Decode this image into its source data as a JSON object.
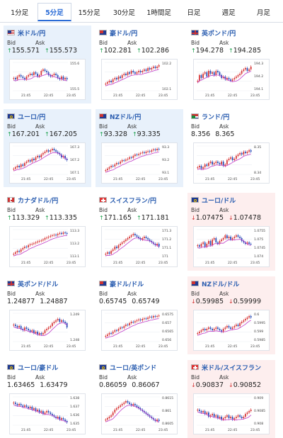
{
  "tabs": [
    {
      "label": "1分足",
      "active": false
    },
    {
      "label": "5分足",
      "active": true
    },
    {
      "label": "15分足",
      "active": false
    },
    {
      "label": "30分足",
      "active": false
    },
    {
      "label": "1時間足",
      "active": false
    },
    {
      "label": "日足",
      "active": false
    },
    {
      "label": "週足",
      "active": false
    },
    {
      "label": "月足",
      "active": false
    }
  ],
  "bid_label": "Bid",
  "ask_label": "Ask",
  "time_labels": [
    "21:45",
    "22:45",
    "23:45"
  ],
  "colors": {
    "up": "#1aa14b",
    "down": "#d23030",
    "link": "#2a5db0",
    "candle_up": "#d83a3a",
    "candle_down": "#2c4fb8",
    "ma": "#c03cc8"
  },
  "cards": [
    {
      "pair": "米ドル/円",
      "flag": "us",
      "bg": "blue",
      "dir": "up",
      "bid": "155.571",
      "ask": "155.573",
      "y_ticks": [
        "155.6",
        "155.5"
      ]
    },
    {
      "pair": "豪ドル/円",
      "flag": "au",
      "bg": "white",
      "dir": "up",
      "bid": "102.281",
      "ask": "102.286",
      "y_ticks": [
        "102.2",
        "102.1"
      ]
    },
    {
      "pair": "英ポンド/円",
      "flag": "gb",
      "bg": "white",
      "dir": "up",
      "bid": "194.278",
      "ask": "194.285",
      "y_ticks": [
        "194.3",
        "194.2",
        "194.1"
      ]
    },
    {
      "pair": "ユーロ/円",
      "flag": "eu",
      "bg": "blue",
      "dir": "up",
      "bid": "167.201",
      "ask": "167.205",
      "y_ticks": [
        "167.3",
        "167.2",
        "167.1"
      ]
    },
    {
      "pair": "NZドル/円",
      "flag": "nz",
      "bg": "blue",
      "dir": "up",
      "bid": "93.328",
      "ask": "93.335",
      "y_ticks": [
        "93.3",
        "93.2",
        "93.1"
      ]
    },
    {
      "pair": "ランド/円",
      "flag": "za",
      "bg": "white",
      "dir": "none",
      "bid": "8.356",
      "ask": "8.365",
      "y_ticks": [
        "8.35",
        "8.34"
      ]
    },
    {
      "pair": "カナダドル/円",
      "flag": "ca",
      "bg": "white",
      "dir": "up",
      "bid": "113.329",
      "ask": "113.335",
      "y_ticks": [
        "113.3",
        "113.2",
        "113.1"
      ]
    },
    {
      "pair": "スイスフラン/円",
      "flag": "ch",
      "bg": "white",
      "dir": "up",
      "bid": "171.165",
      "ask": "171.181",
      "y_ticks": [
        "171.3",
        "171.2",
        "171.1",
        "171"
      ]
    },
    {
      "pair": "ユーロ/ドル",
      "flag": "eu",
      "bg": "pink",
      "dir": "down",
      "bid": "1.07475",
      "ask": "1.07478",
      "y_ticks": [
        "1.0755",
        "1.075",
        "1.0745",
        "1.074"
      ]
    },
    {
      "pair": "英ポンド/ドル",
      "flag": "gb",
      "bg": "white",
      "dir": "none",
      "bid": "1.24877",
      "ask": "1.24887",
      "y_ticks": [
        "1.249",
        "1.248"
      ]
    },
    {
      "pair": "豪ドル/ドル",
      "flag": "au",
      "bg": "white",
      "dir": "none",
      "bid": "0.65745",
      "ask": "0.65749",
      "y_ticks": [
        "0.6575",
        "0.657",
        "0.6565",
        "0.656"
      ]
    },
    {
      "pair": "NZドル/ドル",
      "flag": "nz",
      "bg": "pink",
      "dir": "down",
      "bid": "0.59985",
      "ask": "0.59999",
      "y_ticks": [
        "0.6",
        "0.5995",
        "0.599",
        "0.5985"
      ]
    },
    {
      "pair": "ユーロ/豪ドル",
      "flag": "eu",
      "bg": "white",
      "dir": "none",
      "bid": "1.63465",
      "ask": "1.63479",
      "y_ticks": [
        "1.638",
        "1.637",
        "1.636",
        "1.635"
      ]
    },
    {
      "pair": "ユーロ/英ポンド",
      "flag": "eu",
      "bg": "white",
      "dir": "none",
      "bid": "0.86059",
      "ask": "0.86067",
      "y_ticks": [
        "0.8615",
        "0.861",
        "0.8605"
      ]
    },
    {
      "pair": "米ドル/スイスフラン",
      "flag": "ch",
      "bg": "pink",
      "dir": "down",
      "bid": "0.90837",
      "ask": "0.90852",
      "y_ticks": [
        "0.909",
        "0.9085",
        "0.908"
      ]
    }
  ],
  "sparklines": [
    [
      0.55,
      0.6,
      0.5,
      0.45,
      0.5,
      0.55,
      0.6,
      0.5,
      0.45,
      0.4,
      0.45,
      0.35,
      0.4,
      0.5,
      0.45,
      0.3,
      0.25,
      0.3,
      0.35,
      0.45,
      0.5,
      0.45,
      0.4,
      0.45,
      0.55,
      0.6,
      0.5,
      0.6,
      0.55,
      0.6
    ],
    [
      0.75,
      0.7,
      0.65,
      0.7,
      0.6,
      0.55,
      0.6,
      0.5,
      0.55,
      0.45,
      0.4,
      0.45,
      0.35,
      0.4,
      0.3,
      0.35,
      0.4,
      0.35,
      0.3,
      0.35,
      0.3,
      0.25,
      0.3,
      0.2,
      0.25,
      0.2,
      0.15,
      0.2,
      0.15,
      0.1
    ],
    [
      0.65,
      0.45,
      0.55,
      0.4,
      0.35,
      0.5,
      0.3,
      0.4,
      0.35,
      0.45,
      0.3,
      0.35,
      0.45,
      0.55,
      0.5,
      0.6,
      0.55,
      0.6,
      0.65,
      0.6,
      0.55,
      0.5,
      0.45,
      0.4,
      0.3,
      0.25,
      0.2,
      0.3,
      0.25,
      0.15
    ],
    [
      0.8,
      0.75,
      0.7,
      0.75,
      0.65,
      0.7,
      0.6,
      0.55,
      0.5,
      0.55,
      0.45,
      0.5,
      0.4,
      0.35,
      0.4,
      0.3,
      0.25,
      0.2,
      0.15,
      0.2,
      0.15,
      0.1,
      0.15,
      0.2,
      0.25,
      0.3,
      0.4,
      0.35,
      0.45,
      0.5
    ],
    [
      0.85,
      0.8,
      0.75,
      0.7,
      0.72,
      0.65,
      0.6,
      0.62,
      0.55,
      0.5,
      0.52,
      0.48,
      0.45,
      0.4,
      0.42,
      0.35,
      0.3,
      0.32,
      0.28,
      0.25,
      0.22,
      0.25,
      0.2,
      0.18,
      0.2,
      0.15,
      0.12,
      0.15,
      0.1,
      0.12
    ],
    [
      0.75,
      0.7,
      0.8,
      0.75,
      0.65,
      0.7,
      0.6,
      0.55,
      0.65,
      0.6,
      0.55,
      0.6,
      0.65,
      0.55,
      0.7,
      0.65,
      0.5,
      0.45,
      0.4,
      0.5,
      0.45,
      0.35,
      0.3,
      0.25,
      0.3,
      0.2,
      0.25,
      0.2,
      0.15,
      0.2
    ],
    [
      0.85,
      0.8,
      0.75,
      0.78,
      0.7,
      0.65,
      0.6,
      0.62,
      0.55,
      0.52,
      0.5,
      0.48,
      0.45,
      0.42,
      0.4,
      0.38,
      0.35,
      0.3,
      0.28,
      0.25,
      0.22,
      0.2,
      0.18,
      0.2,
      0.15,
      0.12,
      0.15,
      0.1,
      0.12,
      0.15
    ],
    [
      0.85,
      0.8,
      0.85,
      0.75,
      0.7,
      0.6,
      0.65,
      0.55,
      0.5,
      0.45,
      0.4,
      0.35,
      0.3,
      0.25,
      0.2,
      0.15,
      0.2,
      0.25,
      0.3,
      0.35,
      0.3,
      0.25,
      0.3,
      0.35,
      0.4,
      0.45,
      0.5,
      0.55,
      0.5,
      0.6
    ],
    [
      0.55,
      0.6,
      0.5,
      0.45,
      0.6,
      0.5,
      0.4,
      0.55,
      0.35,
      0.3,
      0.45,
      0.5,
      0.4,
      0.35,
      0.3,
      0.2,
      0.3,
      0.25,
      0.35,
      0.3,
      0.25,
      0.2,
      0.25,
      0.3,
      0.4,
      0.45,
      0.5,
      0.45,
      0.5,
      0.5
    ],
    [
      0.4,
      0.45,
      0.5,
      0.45,
      0.55,
      0.6,
      0.5,
      0.55,
      0.6,
      0.65,
      0.6,
      0.7,
      0.65,
      0.75,
      0.7,
      0.75,
      0.7,
      0.6,
      0.55,
      0.5,
      0.45,
      0.35,
      0.3,
      0.25,
      0.2,
      0.3,
      0.25,
      0.3,
      0.35,
      0.5
    ],
    [
      0.8,
      0.75,
      0.7,
      0.72,
      0.65,
      0.6,
      0.62,
      0.55,
      0.5,
      0.52,
      0.45,
      0.4,
      0.42,
      0.35,
      0.3,
      0.32,
      0.28,
      0.25,
      0.22,
      0.25,
      0.2,
      0.18,
      0.2,
      0.15,
      0.12,
      0.15,
      0.1,
      0.12,
      0.1,
      0.08
    ],
    [
      0.7,
      0.65,
      0.6,
      0.55,
      0.6,
      0.55,
      0.5,
      0.55,
      0.6,
      0.55,
      0.5,
      0.55,
      0.6,
      0.65,
      0.55,
      0.5,
      0.45,
      0.5,
      0.55,
      0.5,
      0.45,
      0.4,
      0.45,
      0.35,
      0.3,
      0.25,
      0.2,
      0.15,
      0.1,
      0.15
    ],
    [
      0.2,
      0.25,
      0.3,
      0.25,
      0.3,
      0.35,
      0.3,
      0.35,
      0.4,
      0.35,
      0.45,
      0.4,
      0.5,
      0.45,
      0.55,
      0.5,
      0.6,
      0.55,
      0.5,
      0.55,
      0.6,
      0.65,
      0.7,
      0.75,
      0.7,
      0.8,
      0.75,
      0.8,
      0.85,
      0.9
    ],
    [
      0.8,
      0.75,
      0.7,
      0.65,
      0.55,
      0.45,
      0.4,
      0.35,
      0.3,
      0.25,
      0.2,
      0.15,
      0.2,
      0.25,
      0.3,
      0.25,
      0.3,
      0.35,
      0.4,
      0.45,
      0.5,
      0.55,
      0.6,
      0.65,
      0.7,
      0.75,
      0.8,
      0.85,
      0.8,
      0.85
    ],
    [
      0.45,
      0.5,
      0.55,
      0.5,
      0.6,
      0.55,
      0.7,
      0.65,
      0.6,
      0.7,
      0.65,
      0.75,
      0.7,
      0.8,
      0.75,
      0.7,
      0.65,
      0.75,
      0.7,
      0.8,
      0.75,
      0.7,
      0.65,
      0.7,
      0.75,
      0.7,
      0.6,
      0.55,
      0.5,
      0.45
    ]
  ]
}
